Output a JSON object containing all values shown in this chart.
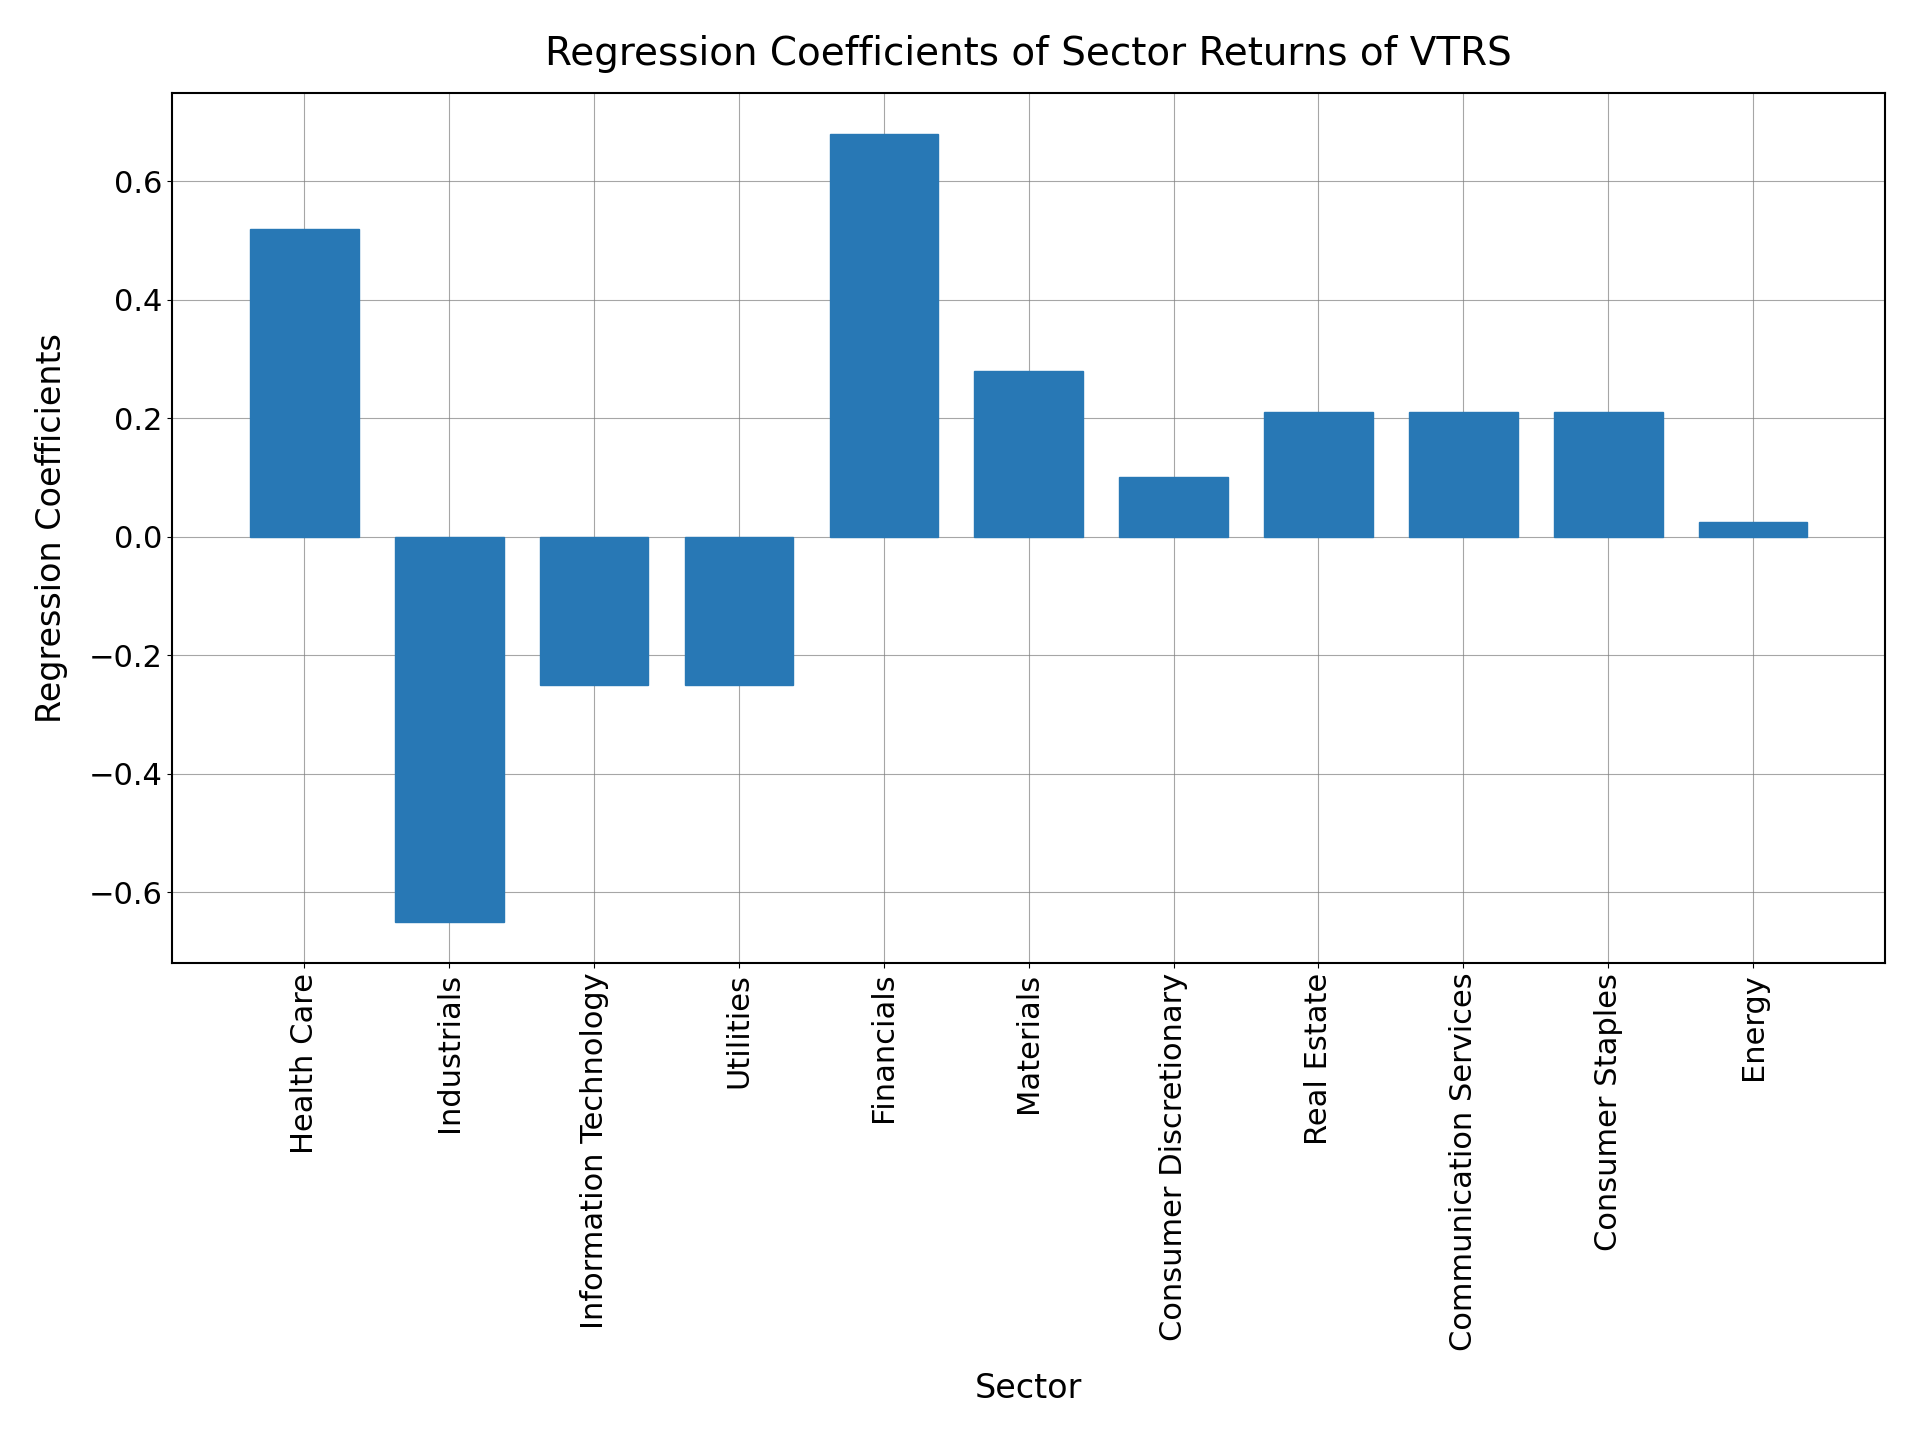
{
  "categories": [
    "Health Care",
    "Industrials",
    "Information Technology",
    "Utilities",
    "Financials",
    "Materials",
    "Consumer Discretionary",
    "Real Estate",
    "Communication Services",
    "Consumer Staples",
    "Energy"
  ],
  "values": [
    0.52,
    -0.65,
    -0.25,
    -0.25,
    0.68,
    0.28,
    0.1,
    0.21,
    0.21,
    0.21,
    0.025
  ],
  "bar_color": "#2878b5",
  "title": "Regression Coefficients of Sector Returns of VTRS",
  "xlabel": "Sector",
  "ylabel": "Regression Coefficients",
  "ylim": [
    -0.72,
    0.75
  ],
  "title_fontsize": 28,
  "axis_label_fontsize": 24,
  "tick_fontsize": 22,
  "background_color": "#ffffff",
  "grid": true,
  "bar_width": 0.75
}
